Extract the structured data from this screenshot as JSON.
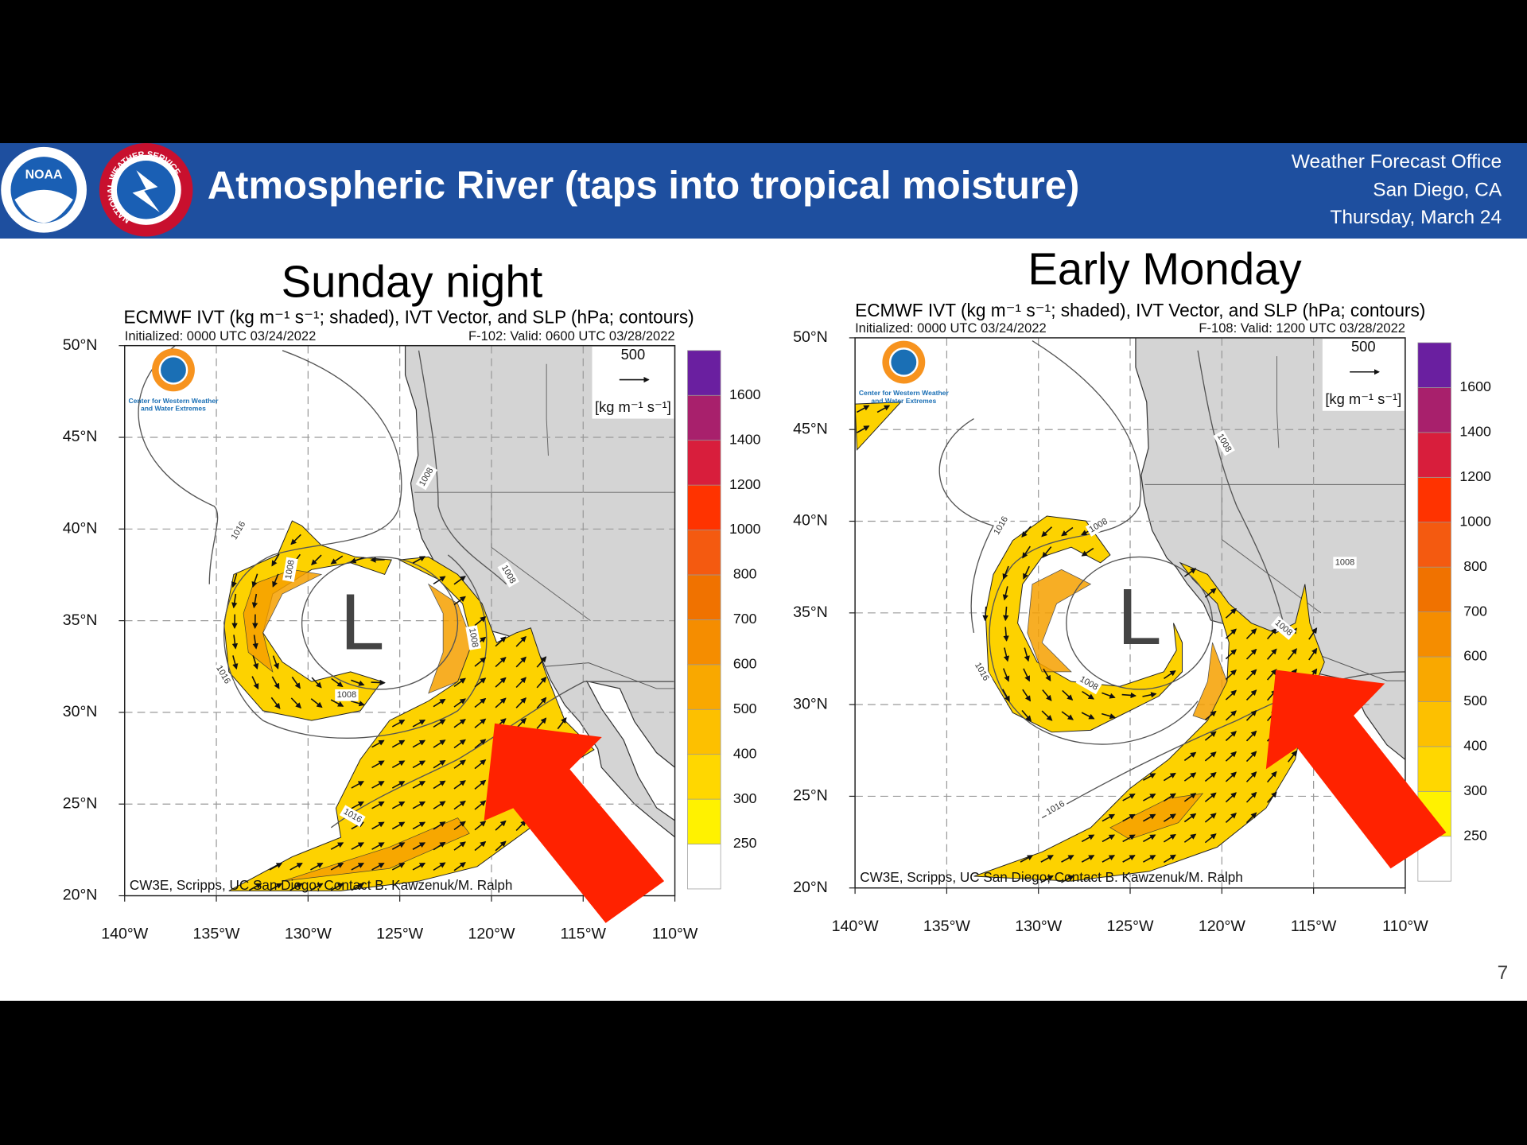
{
  "header": {
    "title": "Atmospheric River (taps into tropical moisture)",
    "office": [
      "Weather Forecast Office",
      "San Diego, CA",
      "Thursday, March 24"
    ],
    "logos": [
      "NOAA",
      "NATIONAL WEATHER SERVICE"
    ]
  },
  "panels": [
    {
      "heading": "Sunday night",
      "title": "ECMWF IVT (kg m⁻¹ s⁻¹; shaded), IVT Vector, and SLP (hPa; contours)",
      "initialized": "Initialized: 0000 UTC 03/24/2022",
      "valid": "F-102: Valid: 0600 UTC 03/28/2022",
      "credit": "CW3E, Scripps, UC San Diego; Contact B. Kawzenuk/M. Ralph",
      "logo_text": [
        "Center for Western Weather",
        "and Water Extremes"
      ],
      "low": "L",
      "vector_ref": "500",
      "vector_unit": "[kg m⁻¹ s⁻¹]",
      "lat_labels": [
        "50°N",
        "45°N",
        "40°N",
        "35°N",
        "30°N",
        "25°N",
        "20°N"
      ],
      "lon_labels": [
        "140°W",
        "135°W",
        "130°W",
        "125°W",
        "120°W",
        "115°W",
        "110°W"
      ],
      "contour_labels": [
        "1016",
        "1008",
        "1016",
        "1008",
        "1008",
        "1008",
        "1016",
        "1008"
      ],
      "colorbar": {
        "levels": [
          250,
          300,
          400,
          500,
          600,
          700,
          800,
          1000,
          1200,
          1400,
          1600
        ],
        "colors": [
          "#ffffff",
          "#fff200",
          "#ffd700",
          "#fdc000",
          "#f9a800",
          "#f58d00",
          "#f07200",
          "#f45a10",
          "#ff3300",
          "#d81e3c",
          "#a8206c",
          "#6a1fa0"
        ]
      }
    },
    {
      "heading": "Early Monday",
      "title": "ECMWF IVT (kg m⁻¹ s⁻¹; shaded), IVT Vector, and SLP (hPa; contours)",
      "initialized": "Initialized: 0000 UTC 03/24/2022",
      "valid": "F-108: Valid: 1200 UTC 03/28/2022",
      "credit": "CW3E, Scripps, UC San Diego; Contact B. Kawzenuk/M. Ralph",
      "logo_text": [
        "Center for Western Weather",
        "and Water Extremes"
      ],
      "low": "L",
      "vector_ref": "500",
      "vector_unit": "[kg m⁻¹ s⁻¹]",
      "lat_labels": [
        "50°N",
        "45°N",
        "40°N",
        "35°N",
        "30°N",
        "25°N",
        "20°N"
      ],
      "lon_labels": [
        "140°W",
        "135°W",
        "130°W",
        "125°W",
        "120°W",
        "115°W",
        "110°W"
      ],
      "contour_labels": [
        "1016",
        "1008",
        "1016",
        "1008",
        "1008",
        "1016",
        "1008",
        "1008"
      ],
      "colorbar": {
        "levels": [
          250,
          300,
          400,
          500,
          600,
          700,
          800,
          1000,
          1200,
          1400,
          1600
        ],
        "colors": [
          "#ffffff",
          "#fff200",
          "#ffd700",
          "#fdc000",
          "#f9a800",
          "#f58d00",
          "#f07200",
          "#f45a10",
          "#ff3300",
          "#d81e3c",
          "#a8206c",
          "#6a1fa0"
        ]
      }
    }
  ],
  "page_number": "7"
}
